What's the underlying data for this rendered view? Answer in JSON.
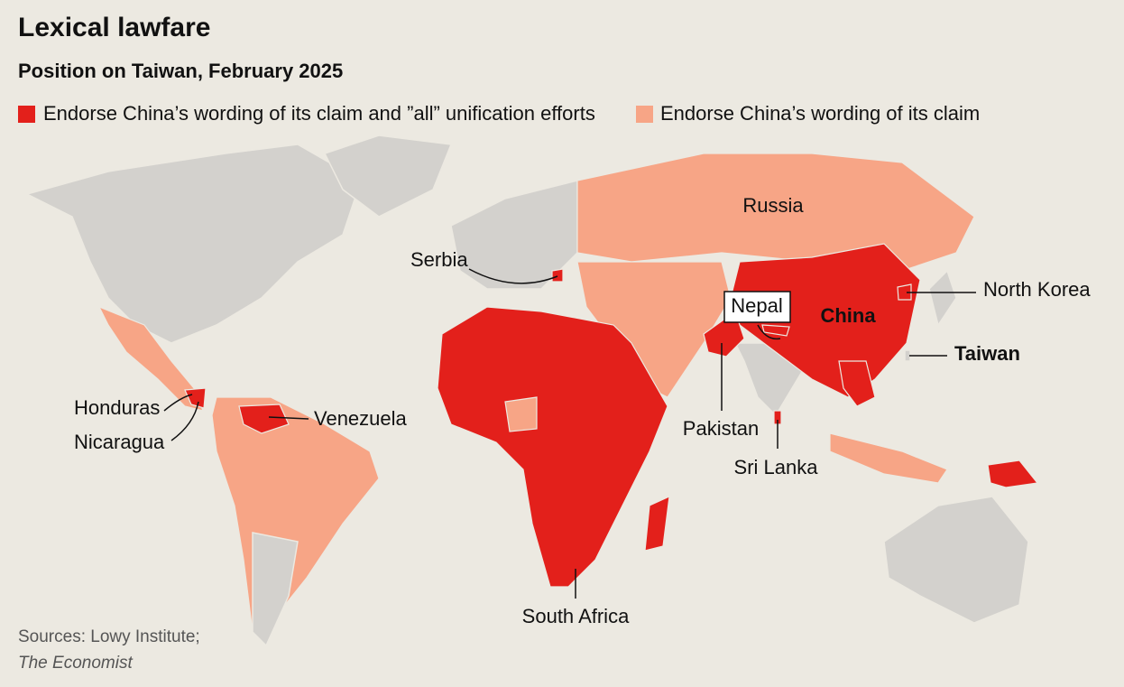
{
  "header": {
    "title": "Lexical lawfare",
    "subtitle": "Position on Taiwan, February 2025"
  },
  "legend": [
    {
      "label": "Endorse China’s wording of its claim and ”all” unification efforts",
      "color": "#e3201b"
    },
    {
      "label": "Endorse China’s wording of its claim",
      "color": "#f7a586"
    }
  ],
  "labels": [
    "Russia",
    "Serbia",
    "North Korea",
    "Nepal",
    "China",
    "Taiwan",
    "Honduras",
    "Nicaragua",
    "Venezuela",
    "Pakistan",
    "Sri Lanka",
    "South Africa"
  ],
  "source": {
    "line1": "Sources: Lowy Institute;",
    "line2": "The Economist"
  }
}
